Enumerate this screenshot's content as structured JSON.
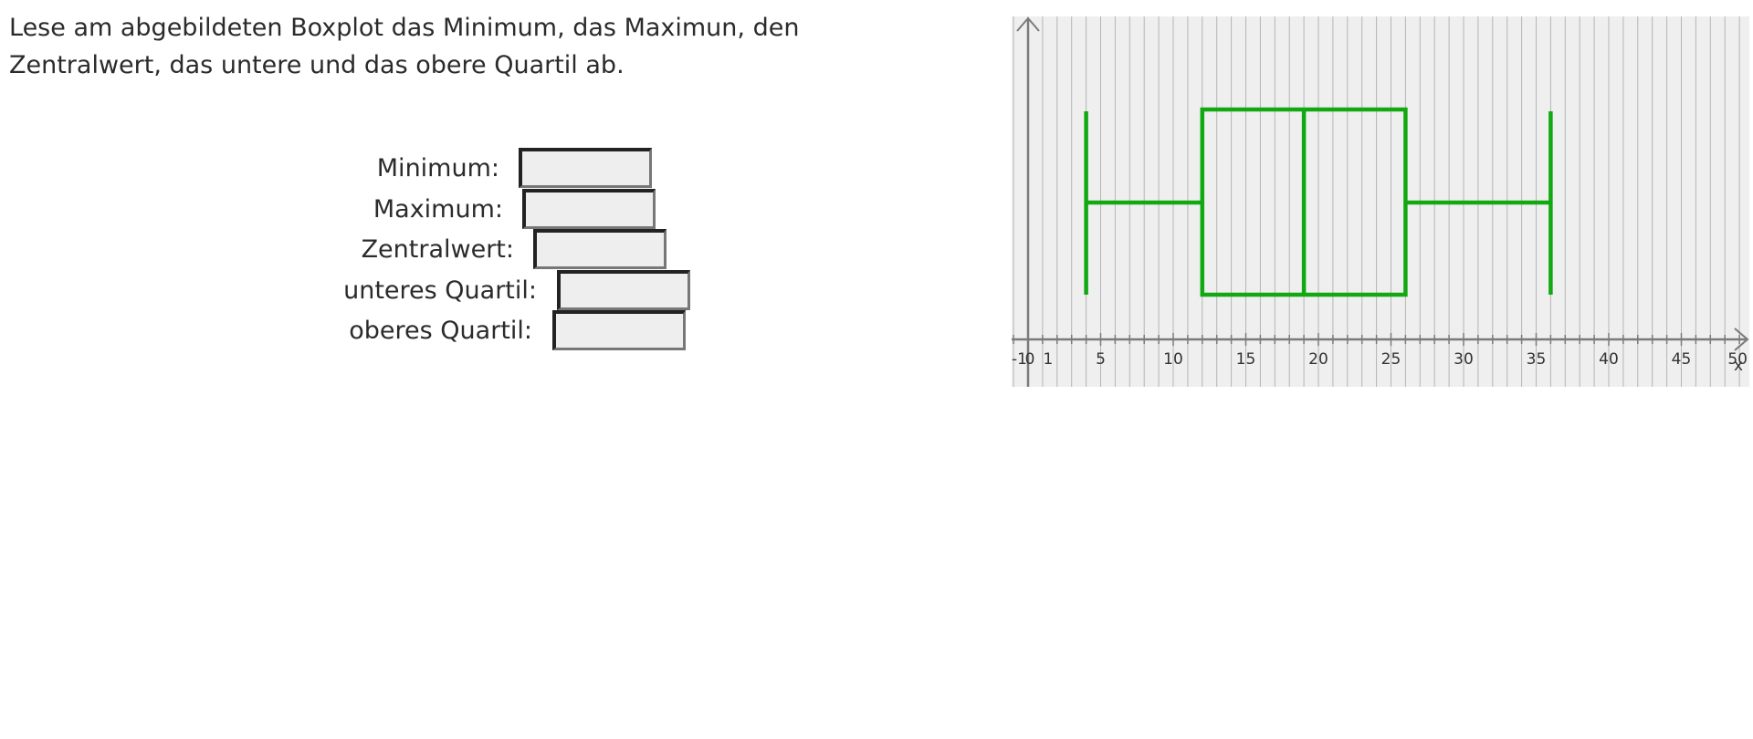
{
  "task": {
    "line1": "Lese am abgebildeten Boxplot das Minimum, das Maximun, den",
    "line2": "Zentralwert, das untere und das obere Quartil ab."
  },
  "fields": [
    {
      "label": "Minimum:",
      "value": ""
    },
    {
      "label": "Maximum:",
      "value": ""
    },
    {
      "label": "Zentralwert:",
      "value": ""
    },
    {
      "label": "unteres Quartil:",
      "value": ""
    },
    {
      "label": "oberes Quartil:",
      "value": ""
    }
  ],
  "chart_data": {
    "type": "boxplot",
    "min": 4,
    "q1": 12,
    "median": 19,
    "q3": 26,
    "max": 36,
    "xlim": [
      -1,
      50
    ],
    "x_axis_label": "x",
    "tick_labels": [
      "-1",
      "0",
      "1",
      "5",
      "10",
      "15",
      "20",
      "25",
      "30",
      "35",
      "40",
      "45",
      "50"
    ],
    "tick_values": [
      -1,
      0,
      1,
      5,
      10,
      15,
      20,
      25,
      30,
      35,
      40,
      45,
      50
    ],
    "grid": true,
    "colors": {
      "box": "#11a811",
      "background": "#efefef",
      "grid": "#b5b5b5",
      "axis": "#7a7a7a"
    }
  }
}
